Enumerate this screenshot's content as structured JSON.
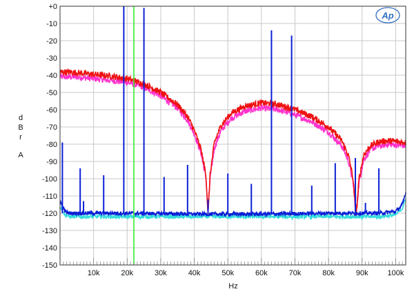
{
  "chart_data": {
    "type": "line",
    "ylabel": [
      "d",
      "B",
      "r",
      "",
      "A"
    ],
    "xlabel": "Hz",
    "xlim": [
      0,
      103000
    ],
    "ylim": [
      -150,
      0
    ],
    "grid": true,
    "yticks": [
      {
        "value": 0,
        "label": "+0"
      },
      {
        "value": -10,
        "label": "-10"
      },
      {
        "value": -20,
        "label": "-20"
      },
      {
        "value": -30,
        "label": "-30"
      },
      {
        "value": -40,
        "label": "-40"
      },
      {
        "value": -50,
        "label": "-50"
      },
      {
        "value": -60,
        "label": "-60"
      },
      {
        "value": -70,
        "label": "-70"
      },
      {
        "value": -80,
        "label": "-80"
      },
      {
        "value": -90,
        "label": "-90"
      },
      {
        "value": -100,
        "label": "-100"
      },
      {
        "value": -110,
        "label": "-110"
      },
      {
        "value": -120,
        "label": "-120"
      },
      {
        "value": -130,
        "label": "-130"
      },
      {
        "value": -140,
        "label": "-140"
      },
      {
        "value": -150,
        "label": "-150"
      }
    ],
    "xticks": [
      {
        "value": 10000,
        "label": "10k"
      },
      {
        "value": 20000,
        "label": "20k"
      },
      {
        "value": 30000,
        "label": "30k"
      },
      {
        "value": 40000,
        "label": "40k"
      },
      {
        "value": 50000,
        "label": "50k"
      },
      {
        "value": 60000,
        "label": "60k"
      },
      {
        "value": 70000,
        "label": "70k"
      },
      {
        "value": 80000,
        "label": "80k"
      },
      {
        "value": 90000,
        "label": "90k"
      },
      {
        "value": 100000,
        "label": "100k"
      }
    ],
    "series": [
      {
        "color": "#ff33cc",
        "points": [
          [
            0,
            -41
          ],
          [
            5000,
            -41
          ],
          [
            10000,
            -42
          ],
          [
            15000,
            -43
          ],
          [
            20000,
            -44
          ],
          [
            25000,
            -47
          ],
          [
            30000,
            -52
          ],
          [
            35000,
            -59
          ],
          [
            38000,
            -66
          ],
          [
            40000,
            -74
          ],
          [
            42000,
            -85
          ],
          [
            43500,
            -100
          ],
          [
            44100,
            -120
          ],
          [
            44700,
            -100
          ],
          [
            46000,
            -82
          ],
          [
            48000,
            -72
          ],
          [
            51000,
            -65
          ],
          [
            55000,
            -61
          ],
          [
            60000,
            -59
          ],
          [
            65000,
            -60
          ],
          [
            70000,
            -63
          ],
          [
            75000,
            -67
          ],
          [
            80000,
            -73
          ],
          [
            84000,
            -81
          ],
          [
            86000,
            -90
          ],
          [
            87300,
            -102
          ],
          [
            88200,
            -121
          ],
          [
            89100,
            -102
          ],
          [
            90500,
            -89
          ],
          [
            92500,
            -83
          ],
          [
            95000,
            -81
          ],
          [
            98000,
            -80
          ],
          [
            103000,
            -81
          ]
        ]
      },
      {
        "color": "#ee1111",
        "points": [
          [
            0,
            -38
          ],
          [
            5000,
            -38.5
          ],
          [
            10000,
            -39.5
          ],
          [
            15000,
            -40.5
          ],
          [
            20000,
            -42
          ],
          [
            25000,
            -45
          ],
          [
            30000,
            -50
          ],
          [
            35000,
            -57
          ],
          [
            38000,
            -64
          ],
          [
            40000,
            -72
          ],
          [
            42000,
            -83
          ],
          [
            43500,
            -98
          ],
          [
            44100,
            -121
          ],
          [
            44700,
            -98
          ],
          [
            46000,
            -79
          ],
          [
            48000,
            -69
          ],
          [
            51000,
            -62
          ],
          [
            55000,
            -58
          ],
          [
            60000,
            -56
          ],
          [
            65000,
            -57
          ],
          [
            70000,
            -60
          ],
          [
            75000,
            -64
          ],
          [
            80000,
            -70
          ],
          [
            84000,
            -78
          ],
          [
            86000,
            -87
          ],
          [
            87300,
            -100
          ],
          [
            88200,
            -122
          ],
          [
            89100,
            -100
          ],
          [
            90500,
            -86
          ],
          [
            92500,
            -81
          ],
          [
            95000,
            -78.5
          ],
          [
            98000,
            -78
          ],
          [
            103000,
            -79
          ]
        ]
      },
      {
        "color": "#33dddd",
        "points": [
          [
            0,
            -116
          ],
          [
            1500,
            -121
          ],
          [
            3000,
            -122
          ],
          [
            8000,
            -122
          ],
          [
            20000,
            -122
          ],
          [
            40000,
            -122
          ],
          [
            60000,
            -122
          ],
          [
            80000,
            -122
          ],
          [
            95000,
            -122
          ],
          [
            100000,
            -121
          ],
          [
            102000,
            -117
          ],
          [
            103000,
            -112
          ]
        ]
      },
      {
        "color": "#0a1fd6",
        "points": [
          [
            0,
            -113
          ],
          [
            1500,
            -119
          ],
          [
            3000,
            -120
          ],
          [
            8000,
            -120
          ],
          [
            20000,
            -120
          ],
          [
            40000,
            -120.5
          ],
          [
            60000,
            -120.5
          ],
          [
            80000,
            -120
          ],
          [
            95000,
            -120
          ],
          [
            100000,
            -119
          ],
          [
            102000,
            -115
          ],
          [
            103000,
            -108
          ]
        ]
      }
    ],
    "spikes": {
      "color": "#0a1fd6",
      "base": -120,
      "items": [
        {
          "x": 700,
          "y": -79
        },
        {
          "x": 6000,
          "y": -94
        },
        {
          "x": 7000,
          "y": -113
        },
        {
          "x": 13000,
          "y": -98
        },
        {
          "x": 19000,
          "y": 0
        },
        {
          "x": 25000,
          "y": -1
        },
        {
          "x": 31000,
          "y": -99
        },
        {
          "x": 38000,
          "y": -92
        },
        {
          "x": 44100,
          "y": -112
        },
        {
          "x": 50000,
          "y": -97
        },
        {
          "x": 57000,
          "y": -103
        },
        {
          "x": 63000,
          "y": -14
        },
        {
          "x": 69000,
          "y": -17
        },
        {
          "x": 75000,
          "y": -104
        },
        {
          "x": 82000,
          "y": -91
        },
        {
          "x": 88000,
          "y": -88
        },
        {
          "x": 91000,
          "y": -114
        },
        {
          "x": 95000,
          "y": -94
        }
      ]
    },
    "marker_line": {
      "x": 22000,
      "color": "#33ee33"
    }
  },
  "logo": {
    "text": "Ap",
    "color": "#2f6fc0"
  }
}
